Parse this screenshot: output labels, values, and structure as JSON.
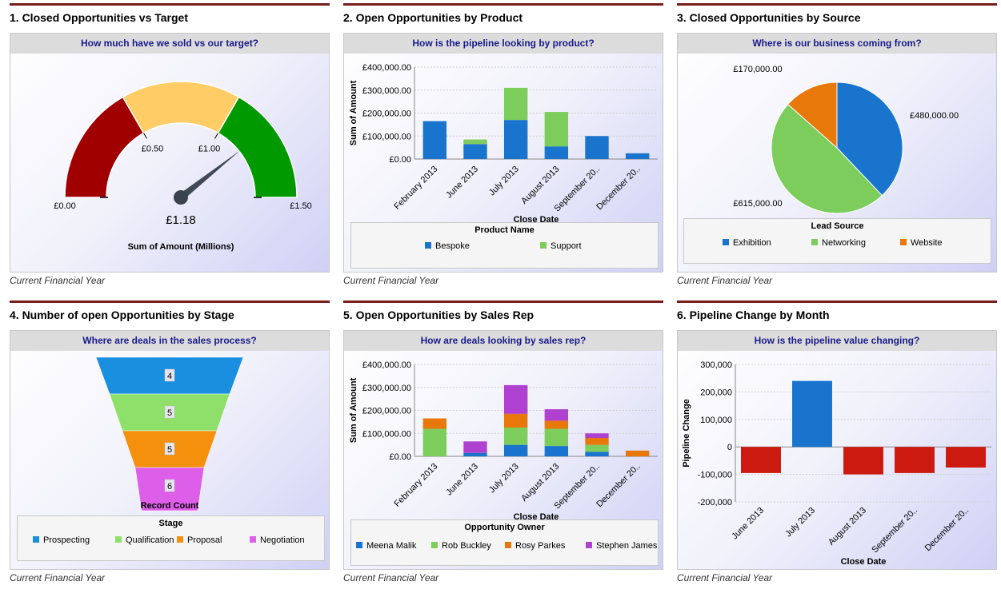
{
  "colors": {
    "title_rule": "#7a1c1c",
    "header_text": "#1a1a8c"
  },
  "panels": [
    {
      "title": "1. Closed Opportunities vs Target",
      "question": "How much have we sold vs our target?",
      "footer": "Current Financial Year"
    },
    {
      "title": "2. Open Opportunities by Product",
      "question": "How is the pipeline looking by product?",
      "footer": "Current Financial Year"
    },
    {
      "title": "3. Closed Opportunities by Source",
      "question": "Where is our business coming from?",
      "footer": "Current Financial Year"
    },
    {
      "title": "4. Number of open Opportunities by Stage",
      "question": "Where are deals in the sales process?",
      "footer": "Current Financial Year"
    },
    {
      "title": "5. Open Opportunities by Sales Rep",
      "question": "How are deals looking by sales rep?",
      "footer": "Current Financial Year"
    },
    {
      "title": "6. Pipeline Change by Month",
      "question": "How is the pipeline value changing?",
      "footer": "Current Financial Year"
    }
  ],
  "chart_data": [
    {
      "type": "gauge",
      "value": 1.18,
      "value_label": "£1.18",
      "min": 0,
      "max": 1.5,
      "bands": [
        {
          "from": 0,
          "to": 0.5,
          "color": "#a00000"
        },
        {
          "from": 0.5,
          "to": 1.0,
          "color": "#ffcc66"
        },
        {
          "from": 1.0,
          "to": 1.5,
          "color": "#009900"
        }
      ],
      "tick_labels": [
        "£0.00",
        "£0.50",
        "£1.00",
        "£1.50"
      ],
      "xlabel": "Sum of Amount (Millions)"
    },
    {
      "type": "bar",
      "stacked": true,
      "categories": [
        "February 2013",
        "June 2013",
        "July 2013",
        "August 2013",
        "September 20..",
        "December 20.."
      ],
      "series": [
        {
          "name": "Bespoke",
          "color": "#1874cd",
          "values": [
            165000,
            65000,
            170000,
            55000,
            100000,
            25000
          ]
        },
        {
          "name": "Support",
          "color": "#7ccd5c",
          "values": [
            0,
            20000,
            140000,
            150000,
            0,
            0
          ]
        }
      ],
      "ylim": [
        0,
        400000
      ],
      "yticks": [
        "£0.00",
        "£100,000.00",
        "£200,000.00",
        "£300,000.00",
        "£400,000.00"
      ],
      "xlabel": "Close Date",
      "ylabel": "Sum of Amount",
      "legend_title": "Product Name"
    },
    {
      "type": "pie",
      "slices": [
        {
          "name": "Exhibition",
          "value": 480000,
          "label": "£480,000.00",
          "color": "#1874cd"
        },
        {
          "name": "Networking",
          "value": 615000,
          "label": "£615,000.00",
          "color": "#7ccd5c"
        },
        {
          "name": "Website",
          "value": 170000,
          "label": "£170,000.00",
          "color": "#e8780a"
        }
      ],
      "xlabel": "Sum of Amount",
      "legend_title": "Lead Source"
    },
    {
      "type": "funnel",
      "stages": [
        {
          "name": "Prospecting",
          "value": 4,
          "color": "#1a8fe0"
        },
        {
          "name": "Qualification",
          "value": 5,
          "color": "#8ee06a"
        },
        {
          "name": "Proposal",
          "value": 5,
          "color": "#f4900c"
        },
        {
          "name": "Negotiation",
          "value": 6,
          "color": "#dd5ee8"
        }
      ],
      "xlabel": "Record Count",
      "legend_title": "Stage"
    },
    {
      "type": "bar",
      "stacked": true,
      "categories": [
        "February 2013",
        "June 2013",
        "July 2013",
        "August 2013",
        "September 20..",
        "December 20.."
      ],
      "series": [
        {
          "name": "Meena Malik",
          "color": "#1874cd",
          "values": [
            0,
            15000,
            50000,
            45000,
            20000,
            0
          ]
        },
        {
          "name": "Rob Buckley",
          "color": "#7ccd5c",
          "values": [
            120000,
            0,
            75000,
            75000,
            30000,
            0
          ]
        },
        {
          "name": "Rosy Parkes",
          "color": "#e8780a",
          "values": [
            45000,
            0,
            60000,
            35000,
            30000,
            25000
          ]
        },
        {
          "name": "Stephen James",
          "color": "#b040d0",
          "values": [
            0,
            50000,
            125000,
            50000,
            20000,
            0
          ]
        }
      ],
      "ylim": [
        0,
        400000
      ],
      "yticks": [
        "£0.00",
        "£100,000.00",
        "£200,000.00",
        "£300,000.00",
        "£400,000.00"
      ],
      "xlabel": "Close Date",
      "ylabel": "Sum of Amount",
      "legend_title": "Opportunity Owner"
    },
    {
      "type": "bar",
      "categories": [
        "June 2013",
        "July 2013",
        "August 2013",
        "September 20..",
        "December 20.."
      ],
      "values": [
        -95000,
        240000,
        -100000,
        -95000,
        -75000
      ],
      "colors": {
        "positive": "#1874cd",
        "negative": "#cc1a10"
      },
      "ylim": [
        -200000,
        300000
      ],
      "yticks": [
        "-200,000",
        "-100,000",
        "0",
        "100,000",
        "200,000",
        "300,000"
      ],
      "xlabel": "Close Date",
      "ylabel": "Pipeline Change"
    }
  ]
}
